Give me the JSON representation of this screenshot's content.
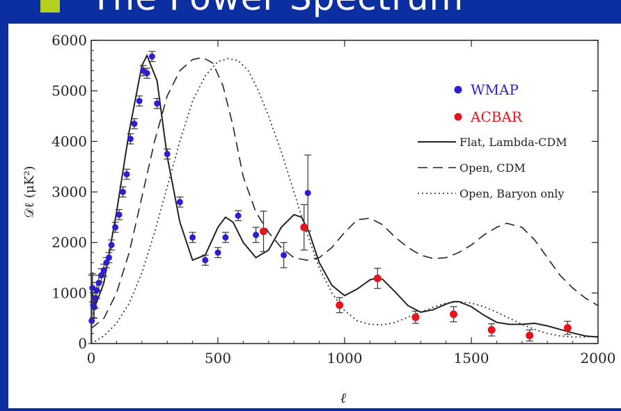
{
  "slide": {
    "title": "The Power Spectrum",
    "background_color": "#0b2fa0",
    "bullet_color": "#b5cf1f"
  },
  "chart_data": {
    "type": "scatter",
    "xlabel": "ℓ",
    "ylabel": "𝒟ℓ (μK²)",
    "xlim": [
      0,
      2000
    ],
    "ylim": [
      0,
      6000
    ],
    "x_ticks": [
      0,
      500,
      1000,
      1500,
      2000
    ],
    "y_ticks": [
      0,
      1000,
      2000,
      3000,
      4000,
      5000,
      6000
    ],
    "grid": false,
    "legend_position": "top-right",
    "series": [
      {
        "name": "WMAP",
        "kind": "points",
        "color": "#2a1fd6",
        "x": [
          2,
          5,
          8,
          12,
          16,
          22,
          30,
          40,
          50,
          60,
          70,
          80,
          95,
          110,
          125,
          140,
          155,
          170,
          190,
          205,
          220,
          240,
          260,
          300,
          350,
          400,
          450,
          500,
          530,
          580,
          650,
          760,
          855
        ],
        "y": [
          450,
          1100,
          760,
          720,
          900,
          1050,
          1200,
          1350,
          1450,
          1600,
          1700,
          1950,
          2300,
          2550,
          3000,
          3350,
          4050,
          4350,
          4800,
          5400,
          5350,
          5680,
          4750,
          3750,
          2800,
          2100,
          1650,
          1800,
          2100,
          2530,
          2150,
          1750,
          2980
        ],
        "err": [
          900,
          280,
          250,
          220,
          200,
          160,
          150,
          130,
          120,
          100,
          100,
          100,
          100,
          100,
          100,
          100,
          100,
          100,
          100,
          100,
          100,
          100,
          100,
          100,
          100,
          100,
          100,
          100,
          100,
          100,
          150,
          250,
          750
        ]
      },
      {
        "name": "ACBAR",
        "kind": "points",
        "color": "#e8141c",
        "x": [
          680,
          840,
          980,
          1130,
          1280,
          1430,
          1580,
          1730,
          1880
        ],
        "y": [
          2220,
          2300,
          760,
          1290,
          520,
          580,
          270,
          160,
          310
        ],
        "err": [
          400,
          450,
          150,
          200,
          120,
          150,
          120,
          110,
          130
        ]
      },
      {
        "name": "Flat, Lambda-CDM",
        "kind": "line",
        "style": "solid",
        "x": [
          2,
          20,
          50,
          100,
          150,
          200,
          220,
          260,
          300,
          350,
          400,
          450,
          500,
          530,
          560,
          600,
          650,
          700,
          750,
          800,
          830,
          860,
          900,
          950,
          1000,
          1050,
          1100,
          1130,
          1150,
          1200,
          1250,
          1300,
          1350,
          1400,
          1430,
          1450,
          1500,
          1550,
          1600,
          1650,
          1700,
          1750,
          1800,
          1850,
          1900,
          1950,
          2000
        ],
        "y": [
          1000,
          800,
          1200,
          2600,
          4200,
          5500,
          5700,
          5200,
          3700,
          2400,
          1650,
          1750,
          2300,
          2500,
          2400,
          2000,
          1700,
          1850,
          2300,
          2550,
          2500,
          2200,
          1600,
          1150,
          950,
          1080,
          1260,
          1300,
          1270,
          1020,
          750,
          620,
          670,
          780,
          830,
          830,
          730,
          560,
          420,
          380,
          380,
          400,
          350,
          280,
          210,
          150,
          130
        ]
      },
      {
        "name": "Open, CDM",
        "kind": "line",
        "style": "dashed",
        "x": [
          0,
          50,
          100,
          150,
          200,
          250,
          300,
          350,
          400,
          440,
          480,
          520,
          560,
          600,
          650,
          700,
          750,
          800,
          850,
          900,
          950,
          1000,
          1050,
          1100,
          1150,
          1200,
          1250,
          1300,
          1350,
          1400,
          1450,
          1500,
          1550,
          1600,
          1640,
          1700,
          1750,
          1800,
          1850,
          1900,
          1950,
          2000
        ],
        "y": [
          300,
          500,
          1000,
          1800,
          2900,
          4000,
          4900,
          5400,
          5620,
          5660,
          5550,
          5100,
          4300,
          3300,
          2600,
          2200,
          1900,
          1700,
          1650,
          1700,
          1900,
          2200,
          2450,
          2480,
          2350,
          2100,
          1900,
          1750,
          1680,
          1700,
          1800,
          1950,
          2150,
          2300,
          2380,
          2300,
          2050,
          1700,
          1350,
          1100,
          900,
          750
        ]
      },
      {
        "name": "Open, Baryon only",
        "kind": "line",
        "style": "dotted",
        "x": [
          0,
          50,
          100,
          150,
          200,
          250,
          300,
          350,
          400,
          450,
          500,
          540,
          580,
          620,
          660,
          700,
          750,
          800,
          850,
          900,
          950,
          1000,
          1050,
          1100,
          1150,
          1200,
          1250,
          1300,
          1350,
          1400,
          1450,
          1500,
          1550,
          1600,
          1650,
          1700,
          1750,
          1800,
          1850,
          1900,
          1950,
          2000
        ],
        "y": [
          0,
          150,
          400,
          800,
          1400,
          2200,
          3100,
          4000,
          4800,
          5300,
          5580,
          5640,
          5600,
          5400,
          5000,
          4500,
          3800,
          3000,
          2200,
          1500,
          1000,
          650,
          450,
          380,
          370,
          420,
          520,
          620,
          720,
          800,
          830,
          800,
          730,
          620,
          500,
          380,
          280,
          200,
          150,
          130,
          130,
          140
        ]
      }
    ]
  }
}
